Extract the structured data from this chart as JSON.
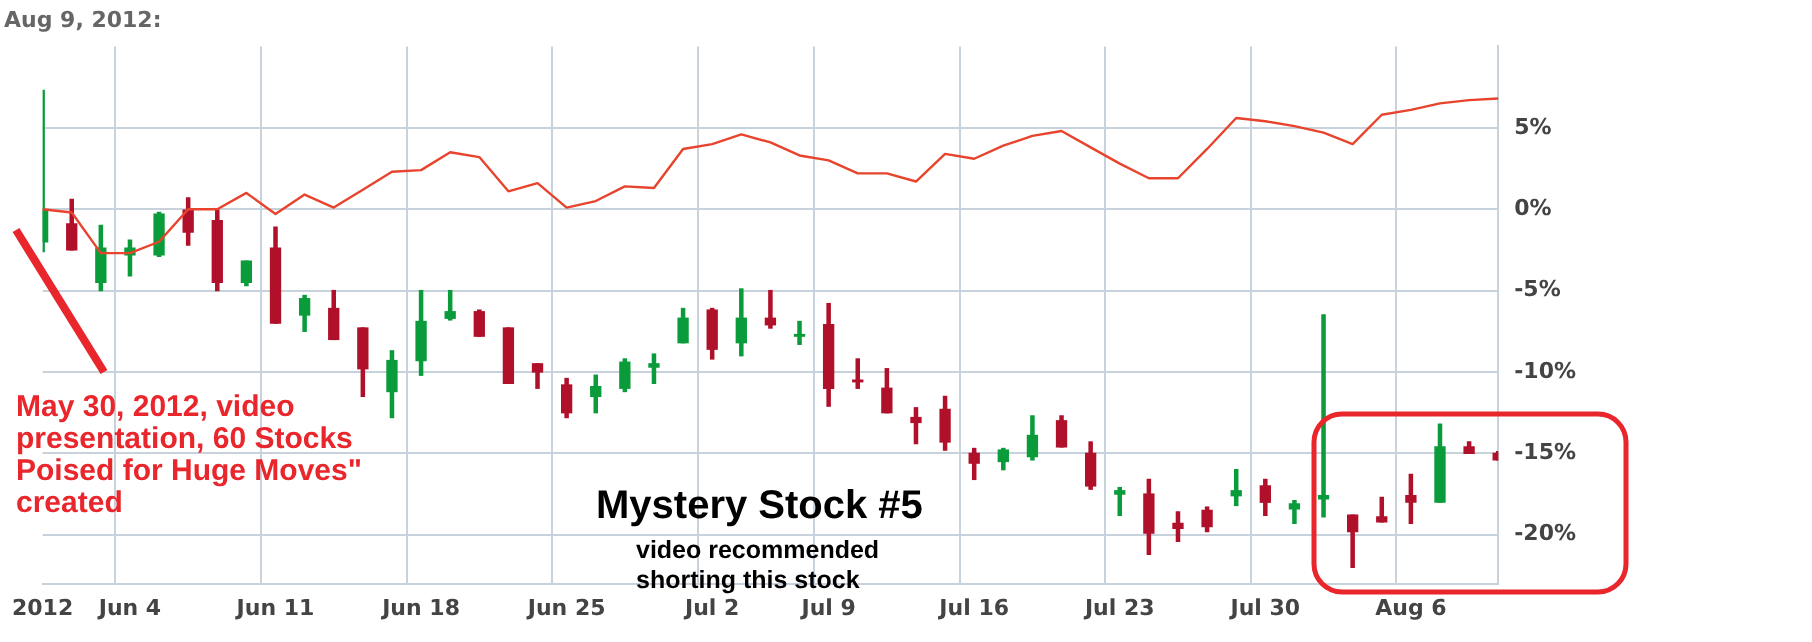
{
  "chart_data": {
    "type": "candlestick",
    "title": "Aug 9, 2012:",
    "categories": [
      "2012",
      null,
      null,
      "Jun 4",
      null,
      null,
      null,
      null,
      "Jun 11",
      null,
      null,
      null,
      null,
      "Jun 18",
      null,
      null,
      null,
      null,
      "Jun 25",
      null,
      null,
      null,
      null,
      "Jul 2",
      null,
      null,
      null,
      "Jul 9",
      null,
      null,
      null,
      null,
      "Jul 16",
      null,
      null,
      null,
      null,
      "Jul 23",
      null,
      null,
      null,
      null,
      "Jul 30",
      null,
      null,
      null,
      null,
      "Aug 6",
      null,
      null,
      null
    ],
    "ohlc": [
      [
        -2,
        7.3,
        -2.6,
        0
      ],
      [
        -0.9,
        0.6,
        -2.5,
        -2.5
      ],
      [
        -4.5,
        -1,
        -5,
        -2.4
      ],
      [
        -2.8,
        -1.9,
        -4.1,
        -2.4
      ],
      [
        -2.8,
        -0.2,
        -2.9,
        -0.3
      ],
      [
        0,
        0.7,
        -2.2,
        -1.4
      ],
      [
        -0.7,
        0,
        -5,
        -4.5
      ],
      [
        -4.5,
        -3.2,
        -4.7,
        -3.2
      ],
      [
        -2.4,
        -1.1,
        -7,
        -7
      ],
      [
        -6.5,
        -5.3,
        -7.5,
        -5.5
      ],
      [
        -6.1,
        -5,
        -8,
        -8
      ],
      [
        -7.3,
        -7.3,
        -11.5,
        -9.8
      ],
      [
        -11.2,
        -8.7,
        -12.8,
        -9.3
      ],
      [
        -9.3,
        -5,
        -10.2,
        -6.9
      ],
      [
        -6.7,
        -5,
        -6.8,
        -6.3
      ],
      [
        -6.3,
        -6.2,
        -7.8,
        -7.8
      ],
      [
        -7.3,
        -7.3,
        -10.7,
        -10.7
      ],
      [
        -9.5,
        -9.5,
        -11,
        -10
      ],
      [
        -10.8,
        -10.4,
        -12.8,
        -12.5
      ],
      [
        -11.5,
        -10.2,
        -12.5,
        -10.9
      ],
      [
        -11,
        -9.2,
        -11.2,
        -9.4
      ],
      [
        -9.7,
        -8.9,
        -10.7,
        -9.5
      ],
      [
        -8.2,
        -6.1,
        -8.2,
        -6.7
      ],
      [
        -6.2,
        -6.1,
        -9.2,
        -8.6
      ],
      [
        -8.2,
        -4.9,
        -9,
        -6.7
      ],
      [
        -6.7,
        -5,
        -7.3,
        -7.1
      ],
      [
        -7.8,
        -6.9,
        -8.3,
        -7.7
      ],
      [
        -7.1,
        -5.8,
        -12.1,
        -11
      ],
      [
        -10.5,
        -9.2,
        -11,
        -10.6
      ],
      [
        -11,
        -9.8,
        -12.5,
        -12.5
      ],
      [
        -12.8,
        -12.2,
        -14.4,
        -13.1
      ],
      [
        -12.3,
        -11.5,
        -14.8,
        -14.3
      ],
      [
        -15,
        -14.7,
        -16.6,
        -15.6
      ],
      [
        -15.5,
        -14.7,
        -16,
        -14.8
      ],
      [
        -15.2,
        -12.7,
        -15.4,
        -13.9
      ],
      [
        -13,
        -12.7,
        -14.6,
        -14.6
      ],
      [
        -15,
        -14.3,
        -17.2,
        -17
      ],
      [
        -17.5,
        -17.1,
        -18.8,
        -17.3
      ],
      [
        -17.5,
        -16.6,
        -21.2,
        -19.9
      ],
      [
        -19.3,
        -18.6,
        -20.4,
        -19.6
      ],
      [
        -18.5,
        -18.3,
        -19.8,
        -19.5
      ],
      [
        -17.6,
        -16,
        -18.2,
        -17.3
      ],
      [
        -17,
        -16.6,
        -18.8,
        -18
      ],
      [
        -18.4,
        -17.9,
        -19.3,
        -18.1
      ],
      [
        -17.8,
        -6.5,
        -18.9,
        -17.6
      ],
      [
        -18.8,
        -18.8,
        -22,
        -19.8
      ],
      [
        -18.9,
        -17.7,
        -19.2,
        -19.2
      ],
      [
        -17.6,
        -16.3,
        -19.3,
        -18
      ],
      [
        -18,
        -13.2,
        -18,
        -14.6
      ],
      [
        -14.6,
        -14.3,
        -15,
        -15
      ],
      [
        -15,
        -14.9,
        -15.4,
        -15.4
      ]
    ],
    "colors": [
      "#0a9b3a",
      "#b0102a",
      "#0a9b3a",
      "#0a9b3a",
      "#0a9b3a",
      "#b0102a",
      "#b0102a",
      "#0a9b3a",
      "#b0102a",
      "#0a9b3a",
      "#b0102a",
      "#b0102a",
      "#0a9b3a",
      "#0a9b3a",
      "#0a9b3a",
      "#b0102a",
      "#b0102a",
      "#b0102a",
      "#b0102a",
      "#0a9b3a",
      "#0a9b3a",
      "#0a9b3a",
      "#0a9b3a",
      "#b0102a",
      "#0a9b3a",
      "#b0102a",
      "#0a9b3a",
      "#b0102a",
      "#b0102a",
      "#b0102a",
      "#b0102a",
      "#b0102a",
      "#b0102a",
      "#0a9b3a",
      "#0a9b3a",
      "#b0102a",
      "#b0102a",
      "#0a9b3a",
      "#b0102a",
      "#b0102a",
      "#b0102a",
      "#0a9b3a",
      "#b0102a",
      "#0a9b3a",
      "#0a9b3a",
      "#b0102a",
      "#b0102a",
      "#b0102a",
      "#0a9b3a",
      "#b0102a",
      "#b0102a"
    ],
    "series": [
      {
        "type": "line",
        "color": "#e8432c",
        "values": [
          0,
          -0.2,
          -2.7,
          -2.7,
          -2,
          0,
          0,
          1,
          -0.3,
          0.9,
          0.1,
          1.2,
          2.3,
          2.4,
          3.5,
          3.2,
          1.1,
          1.6,
          0.1,
          0.5,
          1.4,
          1.3,
          3.7,
          4,
          4.6,
          4.1,
          3.3,
          3,
          2.2,
          2.2,
          1.7,
          3.4,
          3.1,
          3.9,
          4.5,
          4.8,
          3.8,
          2.8,
          1.9,
          1.9,
          3.7,
          5.6,
          5.4,
          5.1,
          4.7,
          4,
          5.8,
          6.1,
          6.5,
          6.7,
          6.8
        ]
      }
    ],
    "ylim": [
      -23,
      10
    ],
    "yticks": [
      {
        "value": 5,
        "label": "5%"
      },
      {
        "value": 0,
        "label": "0%"
      },
      {
        "value": -5,
        "label": "-5%"
      },
      {
        "value": -10,
        "label": "-10%"
      },
      {
        "value": -15,
        "label": "-15%"
      },
      {
        "value": -20,
        "label": "-20%"
      }
    ],
    "grid": true,
    "annotations": [
      "May 30, 2012, video presentation, 60 Stocks Poised for Huge Moves\" created",
      "Mystery Stock #5",
      "video recommended shorting this stock"
    ]
  }
}
